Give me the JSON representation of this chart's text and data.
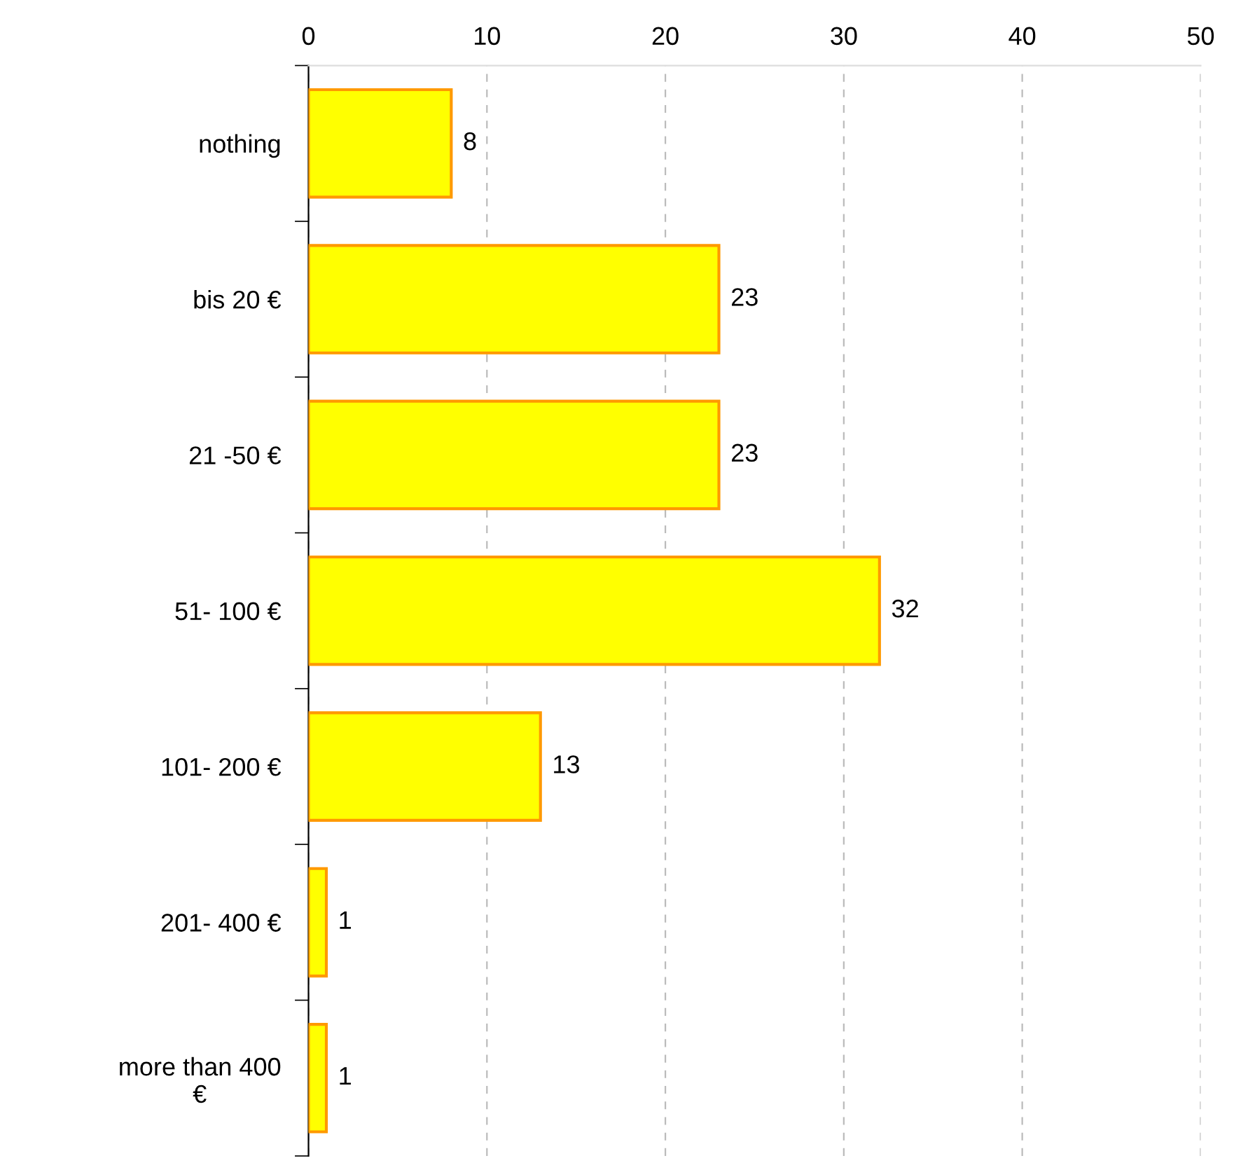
{
  "chart_data": {
    "type": "bar",
    "orientation": "horizontal",
    "categories": [
      "nothing",
      "bis 20 €",
      "21 -50 €",
      "51- 100 €",
      "101- 200 €",
      "201- 400 €",
      "more than 400\n€"
    ],
    "values": [
      8,
      23,
      23,
      32,
      13,
      1,
      1
    ],
    "color": "#ffff00",
    "xlim": [
      0,
      50
    ],
    "xticks": [
      0,
      10,
      20,
      30,
      40,
      50
    ],
    "grid": "x",
    "data_labels": true
  }
}
